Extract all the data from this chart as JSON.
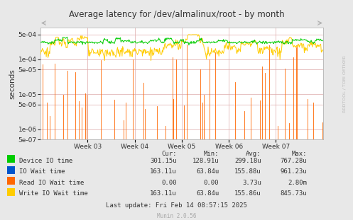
{
  "title": "Average latency for /dev/almalinux/root - by month",
  "ylabel": "seconds",
  "xlabel_ticks": [
    "Week 03",
    "Week 04",
    "Week 05",
    "Week 06",
    "Week 07"
  ],
  "background_color": "#e8e8e8",
  "plot_bg_color": "#ffffff",
  "dot_grid_color": "#ddaaaa",
  "y_grid_color": "#cccccc",
  "legend": [
    {
      "label": "Device IO time",
      "color": "#00cc00"
    },
    {
      "label": "IO Wait time",
      "color": "#0055cc"
    },
    {
      "label": "Read IO Wait time",
      "color": "#ff6600"
    },
    {
      "label": "Write IO Wait time",
      "color": "#ffcc00"
    }
  ],
  "table_headers": [
    "Cur:",
    "Min:",
    "Avg:",
    "Max:"
  ],
  "table_rows": [
    [
      "301.15u",
      "128.91u",
      "299.18u",
      "767.28u"
    ],
    [
      "163.11u",
      "63.84u",
      "155.88u",
      "961.23u"
    ],
    [
      "0.00",
      "0.00",
      "3.73u",
      "2.80m"
    ],
    [
      "163.11u",
      "63.84u",
      "155.86u",
      "845.73u"
    ]
  ],
  "last_update": "Last update: Fri Feb 14 08:57:15 2025",
  "munin_version": "Munin 2.0.56",
  "watermark": "RRDTOOL / TOBI OETIKER",
  "n_points": 500,
  "device_io_mean": 0.0003,
  "device_io_std": 1.5e-05,
  "write_io_mean": 0.00016,
  "write_io_std": 2.5e-05,
  "read_io_spike_prob": 0.09,
  "seed": 42,
  "ymin": 5e-07,
  "ymax": 0.0008,
  "yticks": [
    5e-07,
    1e-06,
    5e-06,
    1e-05,
    5e-05,
    0.0001,
    0.0005
  ],
  "ytick_labels": [
    "5e-07",
    "1e-06",
    "5e-06",
    "1e-05",
    "5e-05",
    "1e-04",
    "5e-04"
  ]
}
